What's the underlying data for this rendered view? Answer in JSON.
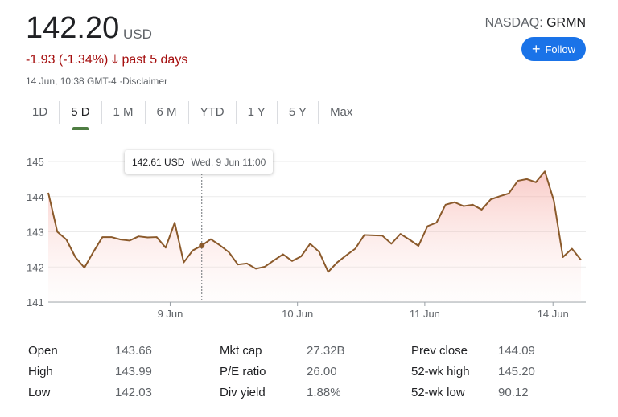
{
  "quote": {
    "price": "142.20",
    "currency": "USD",
    "change": "-1.93 (-1.34%)",
    "change_icon": "arrow-down-icon",
    "change_period": "past 5 days",
    "timestamp": "14 Jun, 10:38 GMT-4 ·",
    "disclaimer": "Disclaimer",
    "exchange": "NASDAQ:",
    "ticker": "GRMN",
    "follow_label": "Follow",
    "follow_icon": "plus-icon"
  },
  "colors": {
    "down": "#a50e0e",
    "accent": "#1a73e8",
    "line": "#8b5a2b",
    "active_tab": "#4e7d42"
  },
  "tabs": [
    {
      "label": "1D"
    },
    {
      "label": "5 D",
      "active": true
    },
    {
      "label": "1 M"
    },
    {
      "label": "6 M"
    },
    {
      "label": "YTD"
    },
    {
      "label": "1 Y"
    },
    {
      "label": "5 Y"
    },
    {
      "label": "Max"
    }
  ],
  "tooltip": {
    "price": "142.61 USD",
    "time": "Wed, 9 Jun 11:00"
  },
  "chart_data": {
    "type": "area",
    "ylim": [
      141,
      145
    ],
    "yticks": [
      "141",
      "142",
      "143",
      "144",
      "145"
    ],
    "xticks": [
      "9 Jun",
      "10 Jun",
      "11 Jun",
      "14 Jun"
    ],
    "grid": true,
    "values": [
      144.11,
      143.0,
      142.78,
      142.28,
      141.98,
      142.43,
      142.85,
      142.85,
      142.78,
      142.75,
      142.87,
      142.84,
      142.85,
      142.55,
      143.26,
      142.13,
      142.47,
      142.61,
      142.79,
      142.62,
      142.42,
      142.07,
      142.1,
      141.95,
      142.01,
      142.19,
      142.36,
      142.17,
      142.3,
      142.66,
      142.43,
      141.86,
      142.13,
      142.33,
      142.52,
      142.91,
      142.9,
      142.89,
      142.66,
      142.94,
      142.78,
      142.6,
      143.16,
      143.26,
      143.77,
      143.84,
      143.73,
      143.77,
      143.63,
      143.92,
      144.01,
      144.09,
      144.45,
      144.5,
      144.41,
      144.72,
      143.88,
      142.28,
      142.52,
      142.2
    ],
    "baseline": 144.09,
    "highlight_index": 17
  },
  "stats": [
    [
      {
        "label": "Open",
        "value": "143.66"
      },
      {
        "label": "Mkt cap",
        "value": "27.32B"
      },
      {
        "label": "Prev close",
        "value": "144.09"
      }
    ],
    [
      {
        "label": "High",
        "value": "143.99"
      },
      {
        "label": "P/E ratio",
        "value": "26.00"
      },
      {
        "label": "52-wk high",
        "value": "145.20"
      }
    ],
    [
      {
        "label": "Low",
        "value": "142.03"
      },
      {
        "label": "Div yield",
        "value": "1.88%"
      },
      {
        "label": "52-wk low",
        "value": "90.12"
      }
    ]
  ]
}
